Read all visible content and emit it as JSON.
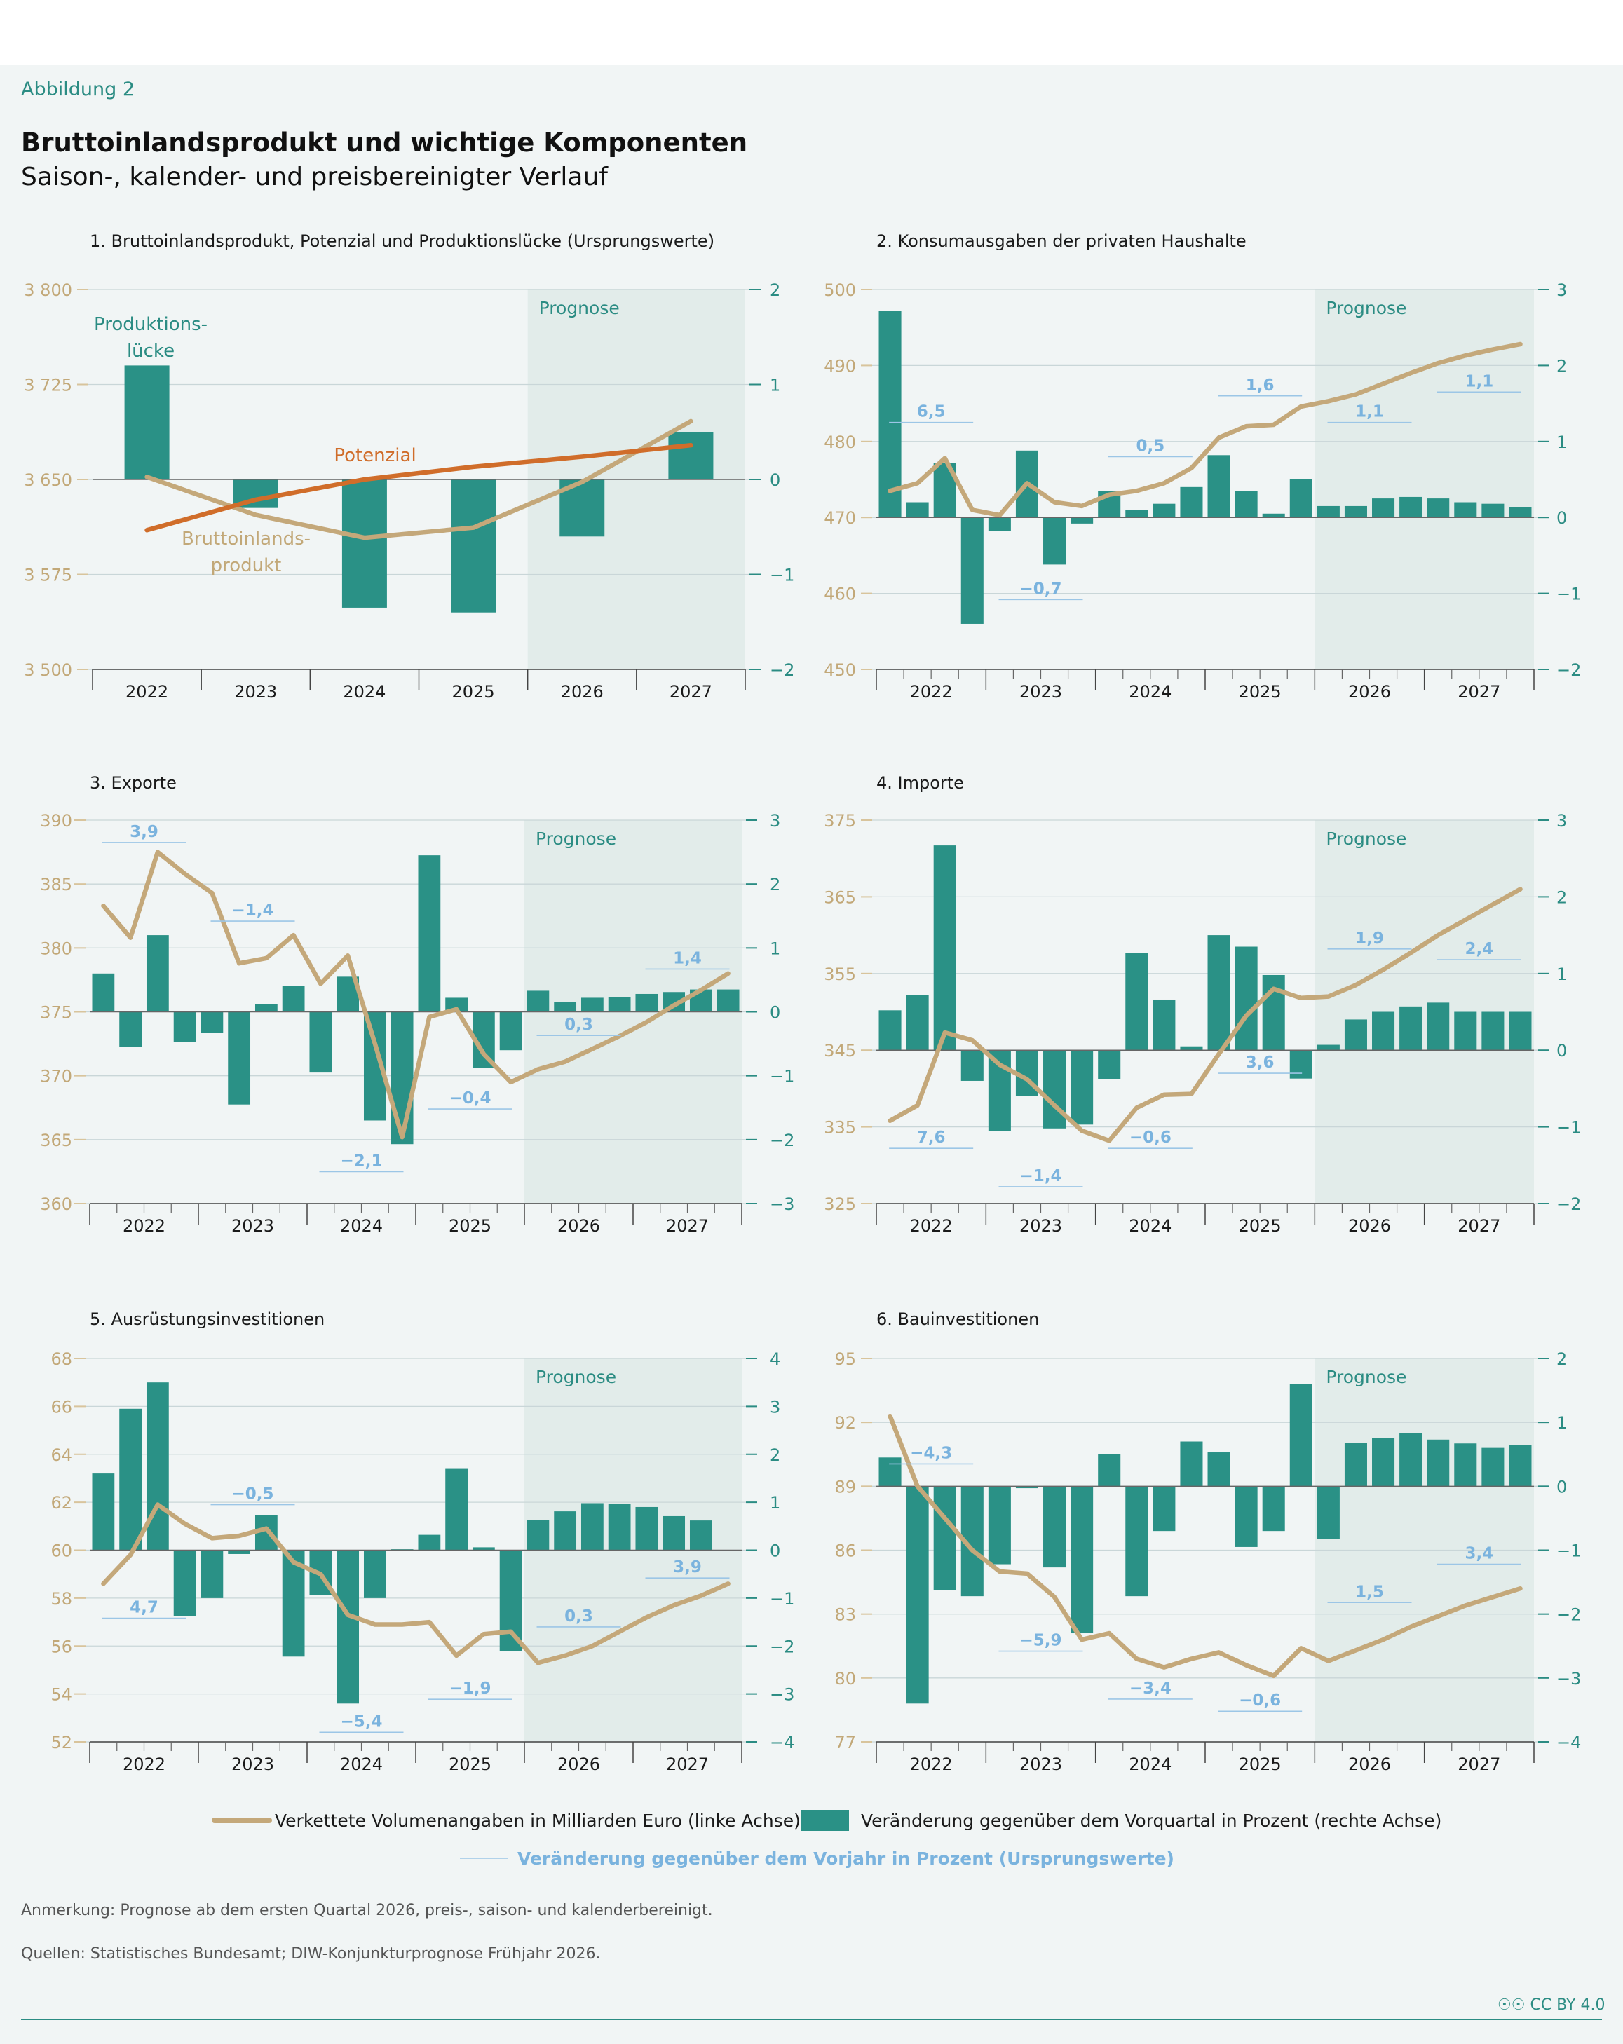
{
  "header": {
    "figure_label": "Abbildung 2",
    "title": "Bruttoinlandsprodukt und wichtige Komponenten",
    "subtitle": "Saison-, kalender- und preisbereinigter Verlauf"
  },
  "colors": {
    "bar": "#2a9186",
    "line": "#c4a87a",
    "potential": "#d06d2a",
    "annotation": "#7ab3de",
    "prognose_bg": "#e2ecea",
    "left_axis": "#c2a878",
    "right_axis": "#2b8c83"
  },
  "chart_data": [
    {
      "type": "bar+line",
      "title": "1. Bruttoinlandsprodukt, Potenzial und Produktionslücke (Ursprungswerte)",
      "x_categories": [
        "2022",
        "2023",
        "2024",
        "2025",
        "2026",
        "2027"
      ],
      "left_ticks": [
        "3 800",
        "3 725",
        "3 650",
        "3 575",
        "3 500"
      ],
      "right_ticks": [
        "2",
        "1",
        "0",
        "−1",
        "−2"
      ],
      "left_range": [
        3500,
        3800
      ],
      "right_range": [
        -2,
        2
      ],
      "prognose_label": "Prognose",
      "prognose_start_index": 4,
      "bars_unit": "year",
      "bars": [
        1.2,
        -0.3,
        -1.35,
        -1.4,
        -0.6,
        0.5
      ],
      "line_name": "Bruttoinlandsprodukt",
      "line": [
        3652,
        3622,
        3604,
        3612,
        3648,
        3696
      ],
      "potential_name": "Potenzial",
      "potential": [
        3610,
        3634,
        3650,
        3660,
        3668,
        3677
      ],
      "labels": {
        "gap": "Produktions-\nlücke",
        "gdp": "Bruttoinlands-\nprodukt",
        "potential": "Potenzial"
      }
    },
    {
      "type": "bar+line",
      "title": "2. Konsumausgaben der privaten Haushalte",
      "x_categories": [
        "2022",
        "2023",
        "2024",
        "2025",
        "2026",
        "2027"
      ],
      "left_ticks": [
        "500",
        "490",
        "480",
        "470",
        "460",
        "450"
      ],
      "right_ticks": [
        "3",
        "2",
        "1",
        "0",
        "−1",
        "−2"
      ],
      "left_range": [
        450,
        500
      ],
      "right_range": [
        -2,
        3
      ],
      "prognose_label": "Prognose",
      "prognose_start_index": 16,
      "bars": [
        2.72,
        0.2,
        0.72,
        -1.4,
        -0.18,
        0.88,
        -0.62,
        -0.08,
        0.35,
        0.1,
        0.18,
        0.4,
        0.82,
        0.35,
        0.05,
        0.5,
        0.15,
        0.15,
        0.25,
        0.27,
        0.25,
        0.2,
        0.18,
        0.14
      ],
      "line": [
        473.5,
        474.5,
        477.8,
        471.0,
        470.3,
        474.5,
        472.0,
        471.5,
        473.0,
        473.5,
        474.5,
        476.5,
        480.5,
        482.0,
        482.2,
        484.6,
        485.3,
        486.2,
        487.6,
        489.0,
        490.3,
        491.3,
        492.1,
        492.8
      ],
      "yoy": [
        {
          "label": "6,5",
          "value": 1.25,
          "year_index": 0
        },
        {
          "label": "−0,7",
          "value": -1.08,
          "year_index": 1
        },
        {
          "label": "0,5",
          "value": 0.8,
          "year_index": 2
        },
        {
          "label": "1,6",
          "value": 1.6,
          "year_index": 3
        },
        {
          "label": "1,1",
          "value": 1.25,
          "year_index": 4
        },
        {
          "label": "1,1",
          "value": 1.65,
          "year_index": 5
        }
      ]
    },
    {
      "type": "bar+line",
      "title": "3. Exporte",
      "x_categories": [
        "2022",
        "2023",
        "2024",
        "2025",
        "2026",
        "2027"
      ],
      "left_ticks": [
        "390",
        "385",
        "380",
        "375",
        "370",
        "365",
        "360"
      ],
      "right_ticks": [
        "3",
        "2",
        "1",
        "0",
        "−1",
        "−2",
        "−3"
      ],
      "left_range": [
        360,
        390
      ],
      "right_range": [
        -3,
        3
      ],
      "prognose_label": "Prognose",
      "prognose_start_index": 16,
      "bars": [
        0.6,
        -0.55,
        1.2,
        -0.47,
        -0.33,
        -1.45,
        0.12,
        0.41,
        -0.95,
        0.55,
        -1.7,
        -2.07,
        2.45,
        0.22,
        -0.88,
        -0.6,
        0.33,
        0.15,
        0.22,
        0.23,
        0.28,
        0.31,
        0.35,
        0.35
      ],
      "line": [
        383.3,
        380.8,
        387.5,
        385.8,
        384.3,
        378.8,
        379.2,
        381.0,
        377.2,
        379.4,
        372.5,
        365.2,
        374.6,
        375.2,
        371.7,
        369.5,
        370.5,
        371.1,
        372.1,
        373.1,
        374.2,
        375.5,
        376.7,
        378.0
      ],
      "yoy": [
        {
          "label": "3,9",
          "value": 2.65,
          "year_index": 0
        },
        {
          "label": "−1,4",
          "value": 1.42,
          "year_index": 1
        },
        {
          "label": "−2,1",
          "value": -2.5,
          "year_index": 2
        },
        {
          "label": "−0,4",
          "value": -1.52,
          "year_index": 3
        },
        {
          "label": "0,3",
          "value": -0.37,
          "year_index": 4
        },
        {
          "label": "1,4",
          "value": 0.67,
          "year_index": 5
        }
      ]
    },
    {
      "type": "bar+line",
      "title": "4. Importe",
      "x_categories": [
        "2022",
        "2023",
        "2024",
        "2025",
        "2026",
        "2027"
      ],
      "left_ticks": [
        "375",
        "365",
        "355",
        "345",
        "335",
        "325"
      ],
      "right_ticks": [
        "3",
        "2",
        "1",
        "0",
        "−1",
        "−2"
      ],
      "left_range": [
        325,
        375
      ],
      "right_range": [
        -2,
        3
      ],
      "prognose_label": "Prognose",
      "prognose_start_index": 16,
      "bars": [
        0.52,
        0.72,
        2.67,
        -0.4,
        -1.05,
        -0.6,
        -1.02,
        -0.97,
        -0.38,
        1.27,
        0.66,
        0.05,
        1.5,
        1.35,
        0.98,
        -0.37,
        0.07,
        0.4,
        0.5,
        0.57,
        0.62,
        0.5,
        0.5,
        0.5
      ],
      "line": [
        335.8,
        337.8,
        347.3,
        346.3,
        343.1,
        341.2,
        337.8,
        334.5,
        333.2,
        337.5,
        339.2,
        339.3,
        344.5,
        349.5,
        353.0,
        351.8,
        352.0,
        353.5,
        355.5,
        357.7,
        360.0,
        362.0,
        364.0,
        366.0
      ],
      "yoy": [
        {
          "label": "7,6",
          "value": -1.28,
          "year_index": 0
        },
        {
          "label": "−1,4",
          "value": -1.78,
          "year_index": 1
        },
        {
          "label": "−0,6",
          "value": -1.28,
          "year_index": 2
        },
        {
          "label": "3,6",
          "value": -0.3,
          "year_index": 3
        },
        {
          "label": "1,9",
          "value": 1.32,
          "year_index": 4
        },
        {
          "label": "2,4",
          "value": 1.18,
          "year_index": 5
        }
      ]
    },
    {
      "type": "bar+line",
      "title": "5. Ausrüstungsinvestitionen",
      "x_categories": [
        "2022",
        "2023",
        "2024",
        "2025",
        "2026",
        "2027"
      ],
      "left_ticks": [
        "68",
        "66",
        "64",
        "62",
        "60",
        "58",
        "56",
        "54",
        "52"
      ],
      "right_ticks": [
        "4",
        "3",
        "2",
        "1",
        "0",
        "−1",
        "−2",
        "−3",
        "−4"
      ],
      "left_range": [
        52,
        68
      ],
      "right_range": [
        -4,
        4
      ],
      "prognose_label": "Prognose",
      "prognose_start_index": 16,
      "bars": [
        1.6,
        2.95,
        3.5,
        -1.38,
        -1.0,
        -0.08,
        0.73,
        -2.22,
        -0.93,
        -3.2,
        -1.0,
        0.02,
        0.32,
        1.71,
        0.06,
        -2.1,
        0.63,
        0.81,
        0.98,
        0.97,
        0.9,
        0.71,
        0.62,
        0
      ],
      "line": [
        58.6,
        59.8,
        61.9,
        61.1,
        60.5,
        60.6,
        60.9,
        59.5,
        59.0,
        57.3,
        56.9,
        56.9,
        57.0,
        55.6,
        56.5,
        56.6,
        55.3,
        55.6,
        56.0,
        56.6,
        57.2,
        57.7,
        58.1,
        58.6
      ],
      "yoy": [
        {
          "label": "4,7",
          "value": -1.42,
          "year_index": 0
        },
        {
          "label": "−0,5",
          "value": 0.95,
          "year_index": 1
        },
        {
          "label": "−5,4",
          "value": -3.8,
          "year_index": 2
        },
        {
          "label": "−1,9",
          "value": -3.11,
          "year_index": 3
        },
        {
          "label": "0,3",
          "value": -1.6,
          "year_index": 4
        },
        {
          "label": "3,9",
          "value": -0.58,
          "year_index": 5
        }
      ]
    },
    {
      "type": "bar+line",
      "title": "6. Bauinvestitionen",
      "x_categories": [
        "2022",
        "2023",
        "2024",
        "2025",
        "2026",
        "2027"
      ],
      "left_ticks": [
        "95",
        "92",
        "89",
        "86",
        "83",
        "80",
        "77"
      ],
      "right_ticks": [
        "2",
        "1",
        "0",
        "−1",
        "−2",
        "−3",
        "−4"
      ],
      "left_range": [
        77,
        95
      ],
      "right_range": [
        -4,
        2
      ],
      "prognose_label": "Prognose",
      "prognose_start_index": 16,
      "bars": [
        0.45,
        -3.4,
        -1.62,
        -1.72,
        -1.22,
        -0.03,
        -1.27,
        -2.3,
        0.5,
        -1.72,
        -0.7,
        0.7,
        0.53,
        -0.95,
        -0.7,
        1.6,
        -0.83,
        0.68,
        0.75,
        0.83,
        0.73,
        0.67,
        0.6,
        0.65
      ],
      "line": [
        92.3,
        89.0,
        87.5,
        86.0,
        85.0,
        84.9,
        83.8,
        81.8,
        82.1,
        80.9,
        80.5,
        80.9,
        81.2,
        80.6,
        80.1,
        81.4,
        80.8,
        81.3,
        81.8,
        82.4,
        82.9,
        83.4,
        83.8,
        84.2
      ],
      "yoy": [
        {
          "label": "−4,3",
          "value": 0.35,
          "year_index": 0
        },
        {
          "label": "−5,9",
          "value": -2.58,
          "year_index": 1
        },
        {
          "label": "−3,4",
          "value": -3.33,
          "year_index": 2
        },
        {
          "label": "−0,6",
          "value": -3.52,
          "year_index": 3
        },
        {
          "label": "1,5",
          "value": -1.82,
          "year_index": 4
        },
        {
          "label": "3,4",
          "value": -1.22,
          "year_index": 5
        }
      ]
    }
  ],
  "legend": {
    "line": "Verkettete Volumenangaben in Milliarden Euro (linke Achse)",
    "bar": "Veränderung gegenüber dem Vorquartal in Prozent (rechte Achse)",
    "yoy": "Veränderung gegenüber dem Vorjahr in Prozent (Ursprungswerte)"
  },
  "footer": {
    "note": "Anmerkung: Prognose ab dem ersten Quartal 2026, preis-, saison- und kalenderbereinigt.",
    "sources": "Quellen: Statistisches Bundesamt; DIW-Konjunkturprognose Frühjahr 2026.",
    "license": "CC BY 4.0"
  }
}
